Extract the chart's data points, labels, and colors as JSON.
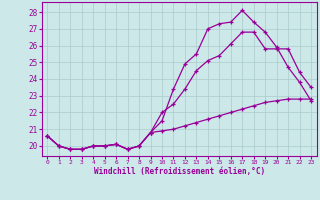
{
  "xlabel": "Windchill (Refroidissement éolien,°C)",
  "bg_color": "#cce8e8",
  "line_color": "#990099",
  "grid_color": "#aacccc",
  "xlim": [
    -0.5,
    23.5
  ],
  "ylim": [
    19.4,
    28.6
  ],
  "yticks": [
    20,
    21,
    22,
    23,
    24,
    25,
    26,
    27,
    28
  ],
  "xticks": [
    0,
    1,
    2,
    3,
    4,
    5,
    6,
    7,
    8,
    9,
    10,
    11,
    12,
    13,
    14,
    15,
    16,
    17,
    18,
    19,
    20,
    21,
    22,
    23
  ],
  "line1_x": [
    0,
    1,
    2,
    3,
    4,
    5,
    6,
    7,
    8,
    9,
    10,
    11,
    12,
    13,
    14,
    15,
    16,
    17,
    18,
    19,
    20,
    21,
    22,
    23
  ],
  "line1_y": [
    20.6,
    20.0,
    19.8,
    19.8,
    20.0,
    20.0,
    20.1,
    19.8,
    20.0,
    20.8,
    21.5,
    23.4,
    24.9,
    25.5,
    27.0,
    27.3,
    27.4,
    28.1,
    27.4,
    26.8,
    25.9,
    24.7,
    23.8,
    22.7
  ],
  "line2_x": [
    0,
    1,
    2,
    3,
    4,
    5,
    6,
    7,
    8,
    9,
    10,
    11,
    12,
    13,
    14,
    15,
    16,
    17,
    18,
    19,
    20,
    21,
    22,
    23
  ],
  "line2_y": [
    20.6,
    20.0,
    19.8,
    19.8,
    20.0,
    20.0,
    20.1,
    19.8,
    20.0,
    20.8,
    22.0,
    22.5,
    23.4,
    24.5,
    25.1,
    25.4,
    26.1,
    26.8,
    26.8,
    25.8,
    25.8,
    25.8,
    24.4,
    23.5
  ],
  "line3_x": [
    0,
    1,
    2,
    3,
    4,
    5,
    6,
    7,
    8,
    9,
    10,
    11,
    12,
    13,
    14,
    15,
    16,
    17,
    18,
    19,
    20,
    21,
    22,
    23
  ],
  "line3_y": [
    20.6,
    20.0,
    19.8,
    19.8,
    20.0,
    20.0,
    20.1,
    19.8,
    20.0,
    20.8,
    20.9,
    21.0,
    21.2,
    21.4,
    21.6,
    21.8,
    22.0,
    22.2,
    22.4,
    22.6,
    22.7,
    22.8,
    22.8,
    22.8
  ]
}
